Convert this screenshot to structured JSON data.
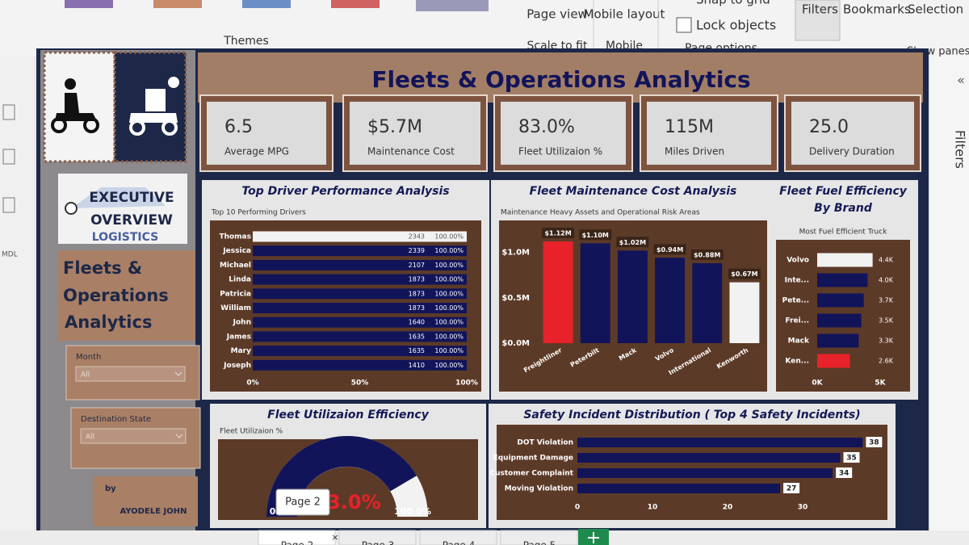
{
  "ribbon": {
    "themes": "Themes",
    "page_view": "Page view",
    "scale_to_fit": "Scale to fit",
    "mobile_layout": "Mobile layout",
    "mobile": "Mobile",
    "snap_to_grid": "Snap to grid",
    "lock_objects": "Lock objects",
    "page_options": "Page options",
    "filters": "Filters",
    "bookmarks": "Bookmarks",
    "selection": "Selection",
    "show_panes": "Show panes"
  },
  "left_pane": {
    "label": "MDL"
  },
  "right_pane": {
    "filters": "Filters"
  },
  "sidebar": {
    "logo_lines": [
      "EXECUTIVE",
      "OVERVIEW",
      "LOGISTICS"
    ],
    "title_lines": [
      "Fleets &",
      "Operations",
      "Analytics"
    ],
    "slicers": [
      {
        "label": "Month",
        "value": "All"
      },
      {
        "label": "Destination State",
        "value": "All"
      }
    ],
    "by": "by",
    "author": "AYODELE JOHN"
  },
  "header": {
    "title": "Fleets & Operations Analytics"
  },
  "kpis": [
    {
      "value": "6.5",
      "label": "Average MPG"
    },
    {
      "value": "$5.7M",
      "label": "Maintenance Cost"
    },
    {
      "value": "83.0%",
      "label": "Fleet Utilizaion %"
    },
    {
      "value": "115M",
      "label": "Miles Driven"
    },
    {
      "value": "25.0",
      "label": "Delivery Duration"
    }
  ],
  "chart_data": [
    {
      "type": "hbar",
      "title": "Top Driver Performance Analysis",
      "subtitle": "Top 10 Performing Drivers",
      "categories": [
        "Thomas",
        "Jessica",
        "Michael",
        "Linda",
        "Patricia",
        "William",
        "John",
        "James",
        "Mary",
        "Joseph"
      ],
      "values": [
        100,
        100,
        100,
        100,
        100,
        100,
        100,
        100,
        100,
        100
      ],
      "value_labels": [
        "100.00%",
        "100.00%",
        "100.00%",
        "100.00%",
        "100.00%",
        "100.00%",
        "100.00%",
        "100.00%",
        "100.00%",
        "100.00%"
      ],
      "counts": [
        2343,
        2339,
        2107,
        1873,
        1873,
        1873,
        1640,
        1635,
        1635,
        1410
      ],
      "colors": [
        "#f2f2f2",
        "#12145a",
        "#12145a",
        "#12145a",
        "#12145a",
        "#12145a",
        "#12145a",
        "#12145a",
        "#12145a",
        "#12145a"
      ],
      "xlim": [
        0,
        100
      ],
      "xticks": [
        {
          "value": 0,
          "label": "0%"
        },
        {
          "value": 50,
          "label": "50%"
        },
        {
          "value": 100,
          "label": "100%"
        }
      ]
    },
    {
      "type": "bar",
      "title": "Fleet Maintenance Cost Analysis",
      "subtitle": "Maintenance Heavy Assets and Operational Risk Areas",
      "categories": [
        "Freightliner",
        "Peterbilt",
        "Mack",
        "Volvo",
        "International",
        "Kenworth"
      ],
      "values": [
        1.12,
        1.1,
        1.02,
        0.94,
        0.88,
        0.67
      ],
      "value_labels": [
        "$1.12M",
        "$1.10M",
        "$1.02M",
        "$0.94M",
        "$0.88M",
        "$0.67M"
      ],
      "colors": [
        "#e8222a",
        "#12145a",
        "#12145a",
        "#12145a",
        "#12145a",
        "#f2f2f2"
      ],
      "ylim": [
        0,
        1.2
      ],
      "yticks": [
        {
          "value": 0,
          "label": "$0.0M"
        },
        {
          "value": 0.5,
          "label": "$0.5M"
        },
        {
          "value": 1,
          "label": "$1.0M"
        }
      ]
    },
    {
      "type": "hbar",
      "title": "Fleet Fuel Efficiency By Brand",
      "subtitle": "Most Fuel Efficient Truck",
      "categories": [
        "Volvo",
        "Inte...",
        "Pete...",
        "Frei...",
        "Mack",
        "Ken..."
      ],
      "values": [
        4400,
        4000,
        3700,
        3500,
        3300,
        2600
      ],
      "value_labels": [
        "4.4K",
        "4.0K",
        "3.7K",
        "3.5K",
        "3.3K",
        "2.6K"
      ],
      "colors": [
        "#f2f2f2",
        "#12145a",
        "#12145a",
        "#12145a",
        "#12145a",
        "#e8222a"
      ],
      "xlim": [
        0,
        5000
      ],
      "xticks": [
        {
          "value": 0,
          "label": "0K"
        },
        {
          "value": 5000,
          "label": "5K"
        }
      ]
    },
    {
      "type": "gauge",
      "title": "Fleet Utilizaion Efficiency",
      "subtitle": "Fleet Utilizaion %",
      "value": 83,
      "value_label": "83.0%",
      "color": "#12145a",
      "lim": [
        0,
        100
      ],
      "ticks": [
        {
          "value": 0,
          "label": "0.0%"
        },
        {
          "value": 100,
          "label": "100.0%"
        }
      ]
    },
    {
      "type": "hbar",
      "title": "Safety Incident Distribution ( Top 4 Safety Incidents)",
      "categories": [
        "DOT Violation",
        "Equipment Damage",
        "Customer Complaint",
        "Moving Violation"
      ],
      "values": [
        38,
        35,
        34,
        27
      ],
      "color": "#12145a",
      "xlim": [
        0,
        40
      ],
      "xticks": [
        0,
        10,
        20,
        30
      ]
    }
  ],
  "tabs": [
    "Page 2",
    "Page 3",
    "Page 4",
    "Page 5"
  ],
  "tooltip": "Page 2"
}
